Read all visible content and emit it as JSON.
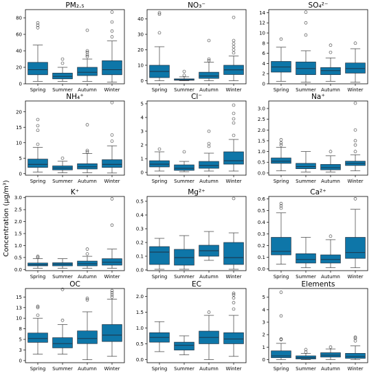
{
  "figure": {
    "ylabel": "Concentration (µg/m³)",
    "box_color": "#0e76a8"
  },
  "chart_data": [
    {
      "type": "box",
      "title": "PM₂.₅",
      "categories": [
        "Spring",
        "Summer",
        "Autumn",
        "Winter"
      ],
      "ylim": [
        0,
        90
      ],
      "yticks": [
        0,
        20,
        40,
        60,
        80
      ],
      "boxes": [
        {
          "min": 3,
          "q1": 11,
          "median": 17,
          "q3": 26,
          "max": 47,
          "fliers": [
            68,
            71,
            74
          ]
        },
        {
          "min": 3,
          "q1": 6,
          "median": 9,
          "q3": 13,
          "max": 20,
          "fliers": [
            25,
            30
          ]
        },
        {
          "min": 3,
          "q1": 10,
          "median": 14,
          "q3": 20,
          "max": 30,
          "fliers": [
            33,
            35,
            38,
            40,
            65
          ]
        },
        {
          "min": 2,
          "q1": 11,
          "median": 17,
          "q3": 28,
          "max": 52,
          "fliers": [
            57,
            64,
            75,
            87
          ]
        }
      ]
    },
    {
      "type": "box",
      "title": "NO₃⁻",
      "categories": [
        "Spring",
        "Summer",
        "Autumn",
        "Winter"
      ],
      "ylim": [
        -2,
        46
      ],
      "yticks": [
        0,
        10,
        20,
        30,
        40
      ],
      "boxes": [
        {
          "min": 0,
          "q1": 2,
          "median": 6,
          "q3": 10,
          "max": 22,
          "fliers": [
            31,
            43,
            44
          ]
        },
        {
          "min": 0,
          "q1": 0.3,
          "median": 0.6,
          "q3": 1.2,
          "max": 2.5,
          "fliers": [
            3.5,
            6
          ]
        },
        {
          "min": 0,
          "q1": 1.5,
          "median": 3,
          "q3": 5.5,
          "max": 12,
          "fliers": [
            13,
            14,
            26
          ]
        },
        {
          "min": 0,
          "q1": 4,
          "median": 7,
          "q3": 10,
          "max": 16,
          "fliers": [
            18,
            20,
            22,
            24,
            26,
            41
          ]
        }
      ]
    },
    {
      "type": "box",
      "title": "SO₄²⁻",
      "categories": [
        "Spring",
        "Summer",
        "Autumn",
        "Winter"
      ],
      "ylim": [
        0,
        14.6
      ],
      "yticks": [
        0,
        2,
        4,
        6,
        8,
        10,
        12,
        14
      ],
      "boxes": [
        {
          "min": 0.5,
          "q1": 2.3,
          "median": 3.3,
          "q3": 4.4,
          "max": 7.2,
          "fliers": [
            8.8
          ]
        },
        {
          "min": 0.3,
          "q1": 1.8,
          "median": 3.0,
          "q3": 4.3,
          "max": 6.5,
          "fliers": [
            9.6,
            12,
            14.1
          ]
        },
        {
          "min": 0.5,
          "q1": 1.8,
          "median": 2.6,
          "q3": 3.2,
          "max": 5.1,
          "fliers": [
            6.2,
            7.6
          ]
        },
        {
          "min": 0.3,
          "q1": 2.1,
          "median": 3.0,
          "q3": 4.1,
          "max": 6.9,
          "fliers": [
            8.0
          ]
        }
      ]
    },
    {
      "type": "box",
      "title": "NH₄⁺",
      "categories": [
        "Spring",
        "Summer",
        "Autumn",
        "Winter"
      ],
      "ylim": [
        -0.5,
        23.5
      ],
      "yticks": [
        0,
        5,
        10,
        15,
        20
      ],
      "boxes": [
        {
          "min": 0.5,
          "q1": 2.0,
          "median": 3.0,
          "q3": 4.7,
          "max": 8.5,
          "fliers": [
            9.5,
            14,
            15.5,
            17.5
          ]
        },
        {
          "min": 0.3,
          "q1": 1.2,
          "median": 1.8,
          "q3": 2.5,
          "max": 4.0,
          "fliers": [
            5.0
          ]
        },
        {
          "min": 0.3,
          "q1": 1.5,
          "median": 2.2,
          "q3": 3.2,
          "max": 6.5,
          "fliers": [
            7.0,
            7.5,
            15.8
          ]
        },
        {
          "min": 0.2,
          "q1": 2.0,
          "median": 3.0,
          "q3": 4.5,
          "max": 9.0,
          "fliers": [
            10.5,
            12.5,
            23
          ]
        }
      ]
    },
    {
      "type": "box",
      "title": "Cl⁻",
      "categories": [
        "Spring",
        "Summer",
        "Autumn",
        "Winter"
      ],
      "ylim": [
        -0.2,
        5.2
      ],
      "yticks": [
        0,
        1,
        2,
        3,
        4,
        5
      ],
      "boxes": [
        {
          "min": 0.1,
          "q1": 0.4,
          "median": 0.6,
          "q3": 0.85,
          "max": 1.5,
          "fliers": [
            1.7
          ]
        },
        {
          "min": 0.05,
          "q1": 0.15,
          "median": 0.3,
          "q3": 0.55,
          "max": 0.8,
          "fliers": [
            1.5
          ]
        },
        {
          "min": 0.1,
          "q1": 0.3,
          "median": 0.5,
          "q3": 0.8,
          "max": 1.4,
          "fliers": [
            1.9,
            2.1,
            3.0
          ]
        },
        {
          "min": 0.1,
          "q1": 0.6,
          "median": 0.85,
          "q3": 1.5,
          "max": 2.4,
          "fliers": [
            2.7,
            3.6,
            3.9,
            4.3,
            4.9
          ]
        }
      ]
    },
    {
      "type": "box",
      "title": "Na⁺",
      "categories": [
        "Spring",
        "Summer",
        "Autumn",
        "Winter"
      ],
      "ylim": [
        -0.1,
        3.35
      ],
      "yticks": [
        0,
        0.5,
        1.0,
        1.5,
        2.0,
        2.5,
        3.0
      ],
      "boxes": [
        {
          "min": 0.1,
          "q1": 0.45,
          "median": 0.55,
          "q3": 0.7,
          "max": 1.2,
          "fliers": [
            1.3,
            1.4,
            1.55
          ]
        },
        {
          "min": 0.05,
          "q1": 0.2,
          "median": 0.3,
          "q3": 0.45,
          "max": 1.0,
          "fliers": []
        },
        {
          "min": 0.05,
          "q1": 0.15,
          "median": 0.25,
          "q3": 0.4,
          "max": 0.8,
          "fliers": [
            1.0
          ]
        },
        {
          "min": 0.1,
          "q1": 0.35,
          "median": 0.45,
          "q3": 0.55,
          "max": 0.85,
          "fliers": [
            1.0,
            1.3,
            1.5,
            2.0,
            3.25
          ]
        }
      ]
    },
    {
      "type": "box",
      "title": "K⁺",
      "categories": [
        "Spring",
        "Summer",
        "Autumn",
        "Winter"
      ],
      "ylim": [
        -0.05,
        3.05
      ],
      "yticks": [
        0,
        0.5,
        1.0,
        1.5,
        2.0,
        2.5,
        3.0
      ],
      "boxes": [
        {
          "min": 0.05,
          "q1": 0.15,
          "median": 0.2,
          "q3": 0.27,
          "max": 0.45,
          "fliers": [
            0.5,
            0.55
          ]
        },
        {
          "min": 0.05,
          "q1": 0.15,
          "median": 0.22,
          "q3": 0.28,
          "max": 0.45,
          "fliers": []
        },
        {
          "min": 0.05,
          "q1": 0.15,
          "median": 0.24,
          "q3": 0.35,
          "max": 0.55,
          "fliers": [
            0.65,
            0.85
          ]
        },
        {
          "min": 0.05,
          "q1": 0.18,
          "median": 0.3,
          "q3": 0.45,
          "max": 0.85,
          "fliers": [
            1.85,
            2.95
          ]
        }
      ]
    },
    {
      "type": "box",
      "title": "Mg²⁺",
      "categories": [
        "Spring",
        "Summer",
        "Autumn",
        "Winter"
      ],
      "ylim": [
        -0.005,
        0.535
      ],
      "yticks": [
        0.0,
        0.1,
        0.2,
        0.3,
        0.4,
        0.5
      ],
      "boxes": [
        {
          "min": 0.005,
          "q1": 0.04,
          "median": 0.13,
          "q3": 0.17,
          "max": 0.23,
          "fliers": []
        },
        {
          "min": 0.005,
          "q1": 0.035,
          "median": 0.09,
          "q3": 0.15,
          "max": 0.25,
          "fliers": []
        },
        {
          "min": 0.07,
          "q1": 0.1,
          "median": 0.14,
          "q3": 0.18,
          "max": 0.28,
          "fliers": []
        },
        {
          "min": 0.005,
          "q1": 0.04,
          "median": 0.09,
          "q3": 0.2,
          "max": 0.27,
          "fliers": [
            0.52
          ]
        }
      ]
    },
    {
      "type": "box",
      "title": "Ca²⁺",
      "categories": [
        "Spring",
        "Summer",
        "Autumn",
        "Winter"
      ],
      "ylim": [
        -0.015,
        0.62
      ],
      "yticks": [
        0.0,
        0.1,
        0.2,
        0.3,
        0.4,
        0.5,
        0.6
      ],
      "boxes": [
        {
          "min": 0.04,
          "q1": 0.12,
          "median": 0.15,
          "q3": 0.27,
          "max": 0.48,
          "fliers": [
            0.52,
            0.54,
            0.56
          ]
        },
        {
          "min": 0.01,
          "q1": 0.05,
          "median": 0.08,
          "q3": 0.13,
          "max": 0.27,
          "fliers": []
        },
        {
          "min": 0.01,
          "q1": 0.05,
          "median": 0.08,
          "q3": 0.12,
          "max": 0.25,
          "fliers": [
            0.28
          ]
        },
        {
          "min": 0.01,
          "q1": 0.09,
          "median": 0.14,
          "q3": 0.27,
          "max": 0.51,
          "fliers": [
            0.6
          ]
        }
      ]
    },
    {
      "type": "box",
      "title": "OC",
      "categories": [
        "Spring",
        "Summer",
        "Autumn",
        "Winter"
      ],
      "ylim": [
        -0.5,
        17
      ],
      "yticks": [
        0.0,
        2.5,
        5.0,
        7.5,
        10.0,
        12.5,
        15.0
      ],
      "boxes": [
        {
          "min": 1.5,
          "q1": 4.3,
          "median": 5.2,
          "q3": 6.5,
          "max": 10.0,
          "fliers": [
            10.7,
            12.5,
            12.8
          ]
        },
        {
          "min": 1.5,
          "q1": 3.0,
          "median": 4.0,
          "q3": 5.4,
          "max": 8.5,
          "fliers": [
            9.5,
            16.8
          ]
        },
        {
          "min": 0.2,
          "q1": 4.0,
          "median": 5.2,
          "q3": 7.0,
          "max": 11.5,
          "fliers": [
            14.3,
            14.7
          ]
        },
        {
          "min": 1.0,
          "q1": 4.5,
          "median": 6.0,
          "q3": 8.5,
          "max": 14.5,
          "fliers": [
            15.0,
            15.5,
            16.0,
            16.5
          ]
        }
      ]
    },
    {
      "type": "box",
      "title": "EC",
      "categories": [
        "Spring",
        "Summer",
        "Autumn",
        "Winter"
      ],
      "ylim": [
        -0.1,
        2.25
      ],
      "yticks": [
        0.0,
        0.5,
        1.0,
        1.5,
        2.0
      ],
      "boxes": [
        {
          "min": 0.25,
          "q1": 0.55,
          "median": 0.7,
          "q3": 0.85,
          "max": 1.2,
          "fliers": []
        },
        {
          "min": 0.15,
          "q1": 0.3,
          "median": 0.45,
          "q3": 0.55,
          "max": 0.75,
          "fliers": []
        },
        {
          "min": 0.0,
          "q1": 0.5,
          "median": 0.7,
          "q3": 0.9,
          "max": 1.4,
          "fliers": [
            1.5
          ]
        },
        {
          "min": 0.1,
          "q1": 0.5,
          "median": 0.65,
          "q3": 0.85,
          "max": 1.4,
          "fliers": [
            1.6,
            1.8,
            1.95,
            2.05,
            2.1
          ]
        }
      ]
    },
    {
      "type": "box",
      "title": "Elements",
      "categories": [
        "Spring",
        "Summer",
        "Autumn",
        "Winter"
      ],
      "ylim": [
        -0.25,
        5.7
      ],
      "yticks": [
        0,
        1,
        2,
        3,
        4,
        5
      ],
      "boxes": [
        {
          "min": 0.0,
          "q1": 0.15,
          "median": 0.3,
          "q3": 0.7,
          "max": 1.3,
          "fliers": [
            1.6,
            1.65,
            3.5,
            5.4
          ]
        },
        {
          "min": 0.0,
          "q1": 0.05,
          "median": 0.15,
          "q3": 0.3,
          "max": 0.5,
          "fliers": [
            0.6,
            0.8
          ]
        },
        {
          "min": 0.0,
          "q1": 0.2,
          "median": 0.35,
          "q3": 0.55,
          "max": 0.85,
          "fliers": [
            1.0
          ]
        },
        {
          "min": 0.0,
          "q1": 0.1,
          "median": 0.25,
          "q3": 0.5,
          "max": 1.1,
          "fliers": [
            1.5,
            1.7,
            1.8
          ]
        }
      ]
    }
  ]
}
